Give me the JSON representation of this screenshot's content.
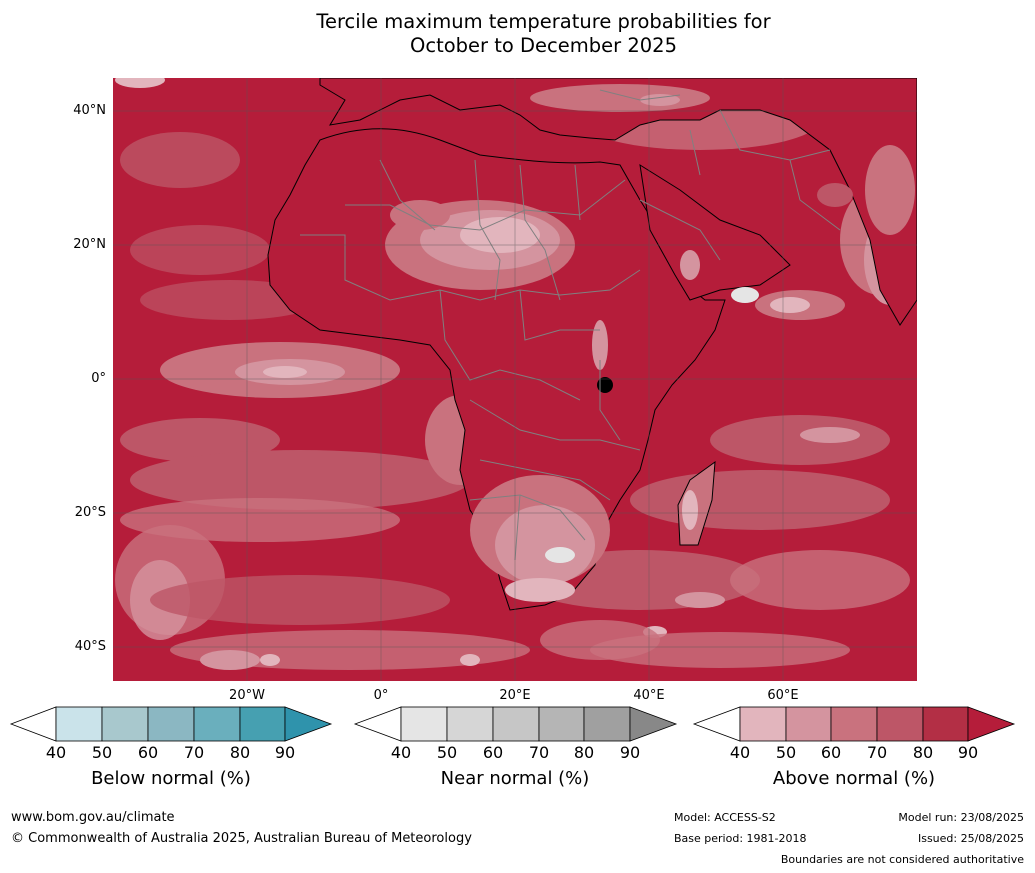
{
  "title": {
    "line1": "Tercile maximum temperature probabilities for",
    "line2": "October to December 2025"
  },
  "map": {
    "lat_labels": [
      "40°N",
      "20°N",
      "0°",
      "20°S",
      "40°S"
    ],
    "lon_labels": [
      "20°W",
      "0°",
      "20°E",
      "40°E",
      "60°E"
    ],
    "colors": {
      "ocean_base": "#b51d3a",
      "land_base": "#b51d3a",
      "coastline": "#000000",
      "borders": "#808080",
      "gridlines": "#555555"
    }
  },
  "colorbars": [
    {
      "label": "Below normal (%)",
      "ticks": [
        "40",
        "50",
        "60",
        "70",
        "80",
        "90"
      ],
      "colors": [
        "#ffffff",
        "#cae3ea",
        "#a8c8cd",
        "#8bb7c2",
        "#6aafbd",
        "#46a0b1",
        "#2f93ac"
      ]
    },
    {
      "label": "Near normal (%)",
      "ticks": [
        "40",
        "50",
        "60",
        "70",
        "80",
        "90"
      ],
      "colors": [
        "#ffffff",
        "#e5e5e5",
        "#d6d6d6",
        "#c6c6c6",
        "#b5b5b5",
        "#a0a0a0",
        "#888888"
      ]
    },
    {
      "label": "Above normal (%)",
      "ticks": [
        "40",
        "50",
        "60",
        "70",
        "80",
        "90"
      ],
      "colors": [
        "#ffffff",
        "#e2b5bd",
        "#d4949f",
        "#c9727e",
        "#bd5667",
        "#b32f45",
        "#b51d3a"
      ]
    }
  ],
  "footer": {
    "website": "www.bom.gov.au/climate",
    "copyright": "© Commonwealth of Australia 2025, Australian Bureau of Meteorology",
    "model": "Model: ACCESS-S2",
    "base_period": "Base period: 1981-2018",
    "model_run": "Model run: 23/08/2025",
    "issued": "Issued: 25/08/2025",
    "disclaimer": "Boundaries are not considered authoritative"
  }
}
